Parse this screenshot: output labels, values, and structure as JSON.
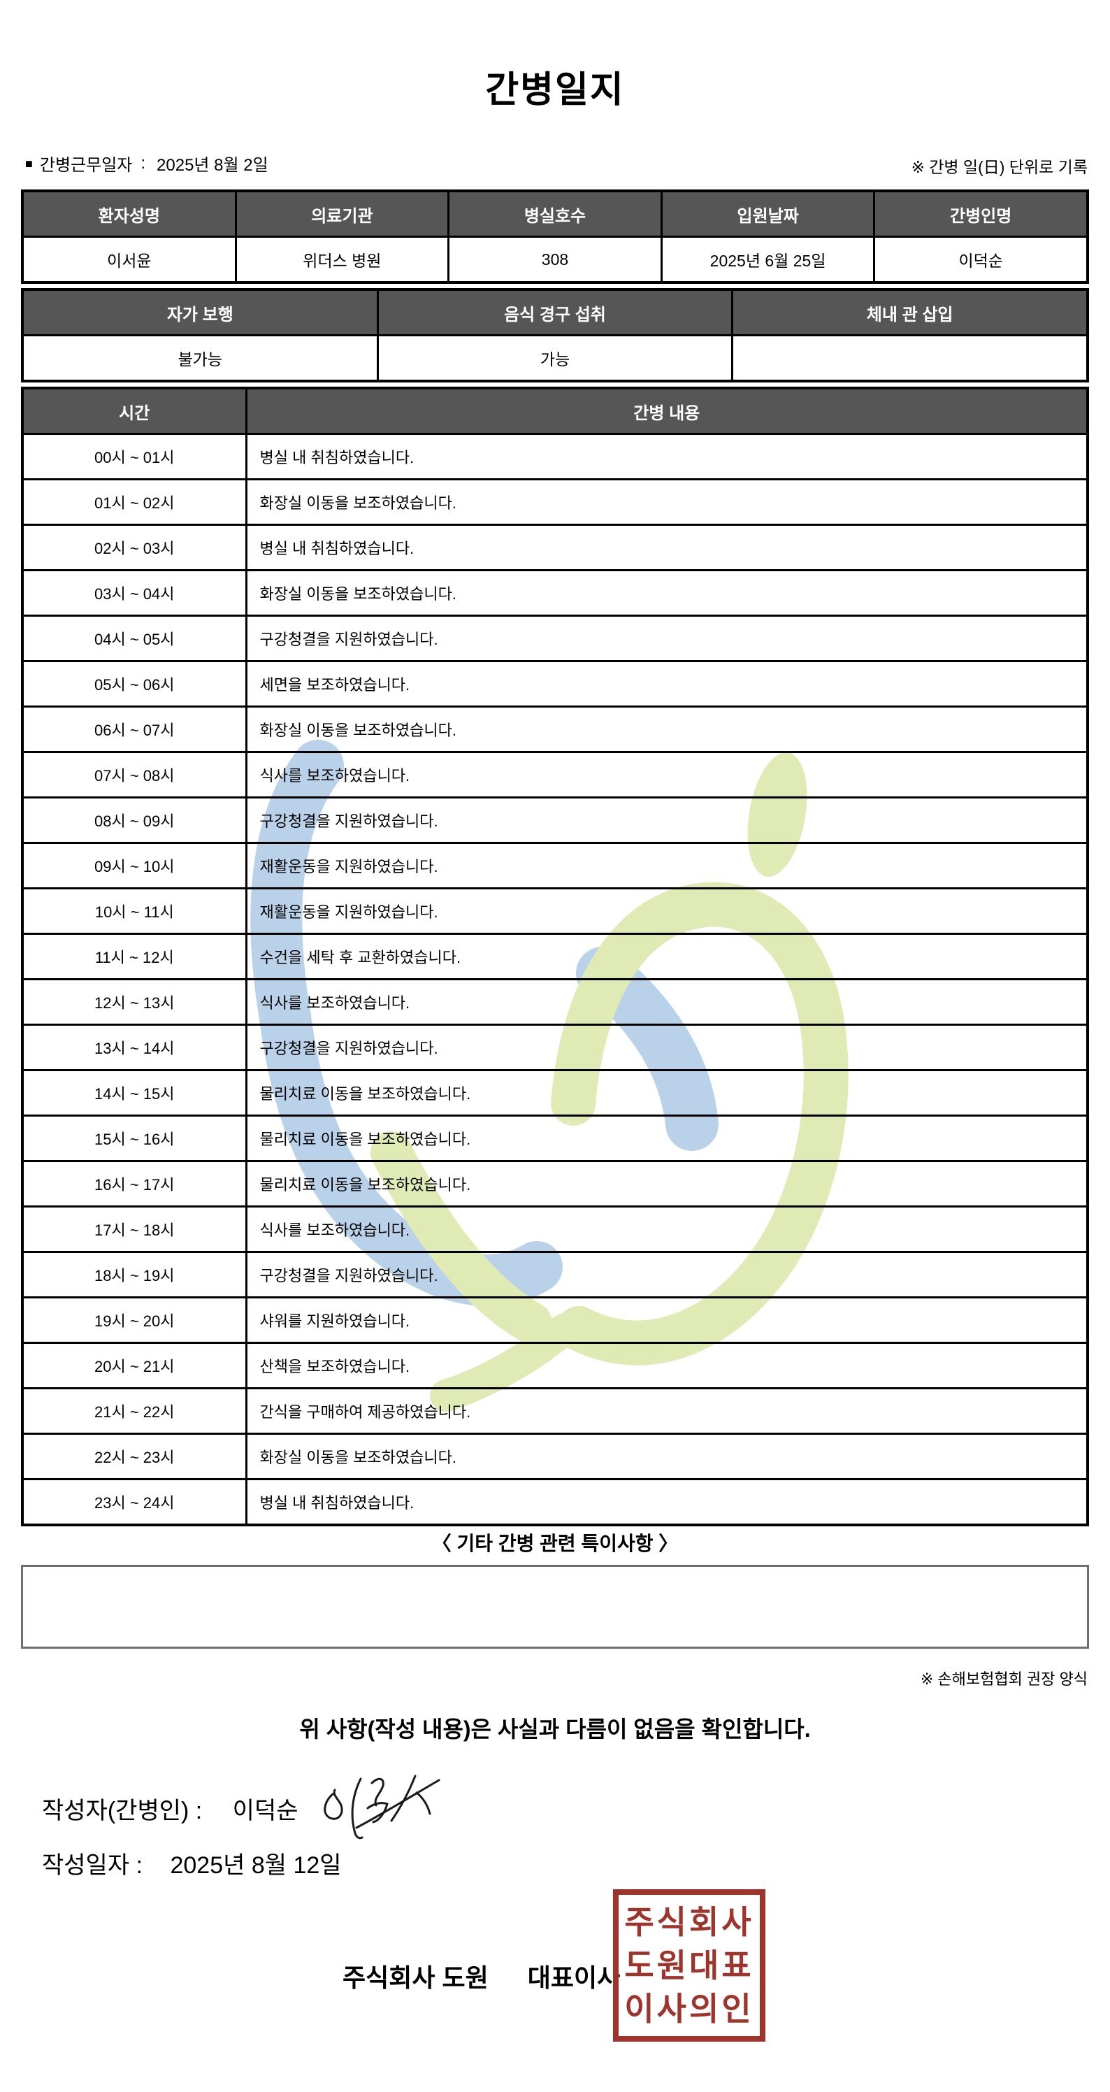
{
  "title": "간병일지",
  "meta": {
    "bullet": "■",
    "work_label": "간병근무일자",
    "colon": ":",
    "work_date": "2025년 8월 2일",
    "unit_note": "※ 간병 일(日) 단위로 기록"
  },
  "patient_table": {
    "headers": [
      "환자성명",
      "의료기관",
      "병실호수",
      "입원날짜",
      "간병인명"
    ],
    "values": [
      "이서윤",
      "위더스 병원",
      "308",
      "2025년 6월 25일",
      "이덕순"
    ]
  },
  "status_table": {
    "headers": [
      "자가 보행",
      "음식 경구 섭취",
      "체내 관 삽입"
    ],
    "values": [
      "불가능",
      "가능",
      ""
    ]
  },
  "care_table": {
    "time_header": "시간",
    "content_header": "간병 내용",
    "rows": [
      {
        "time": "00시 ~ 01시",
        "content": "병실 내 취침하였습니다."
      },
      {
        "time": "01시 ~ 02시",
        "content": "화장실 이동을 보조하였습니다."
      },
      {
        "time": "02시 ~ 03시",
        "content": "병실 내 취침하였습니다."
      },
      {
        "time": "03시 ~ 04시",
        "content": "화장실 이동을 보조하였습니다."
      },
      {
        "time": "04시 ~ 05시",
        "content": "구강청결을 지원하였습니다."
      },
      {
        "time": "05시 ~ 06시",
        "content": "세면을 보조하였습니다."
      },
      {
        "time": "06시 ~ 07시",
        "content": "화장실 이동을 보조하였습니다."
      },
      {
        "time": "07시 ~ 08시",
        "content": "식사를 보조하였습니다."
      },
      {
        "time": "08시 ~ 09시",
        "content": "구강청결을 지원하였습니다."
      },
      {
        "time": "09시 ~ 10시",
        "content": "재활운동을 지원하였습니다."
      },
      {
        "time": "10시 ~ 11시",
        "content": "재활운동을 지원하였습니다."
      },
      {
        "time": "11시 ~ 12시",
        "content": "수건을 세탁 후 교환하였습니다."
      },
      {
        "time": "12시 ~ 13시",
        "content": "식사를 보조하였습니다."
      },
      {
        "time": "13시 ~ 14시",
        "content": "구강청결을 지원하였습니다."
      },
      {
        "time": "14시 ~ 15시",
        "content": "물리치료 이동을 보조하였습니다."
      },
      {
        "time": "15시 ~ 16시",
        "content": "물리치료 이동을 보조하였습니다."
      },
      {
        "time": "16시 ~ 17시",
        "content": "물리치료 이동을 보조하였습니다."
      },
      {
        "time": "17시 ~ 18시",
        "content": "식사를 보조하였습니다."
      },
      {
        "time": "18시 ~ 19시",
        "content": "구강청결을 지원하였습니다."
      },
      {
        "time": "19시 ~ 20시",
        "content": "샤워를 지원하였습니다."
      },
      {
        "time": "20시 ~ 21시",
        "content": "산책을 보조하였습니다."
      },
      {
        "time": "21시 ~ 22시",
        "content": "간식을 구매하여 제공하였습니다."
      },
      {
        "time": "22시 ~ 23시",
        "content": "화장실 이동을 보조하였습니다."
      },
      {
        "time": "23시 ~ 24시",
        "content": "병실 내 취침하였습니다."
      }
    ]
  },
  "notes": {
    "heading": "〈 기타 간병 관련 특이사항 〉",
    "content": "",
    "format_note": "※ 손해보험협회 권장 양식"
  },
  "confirmation": {
    "statement": "위 사항(작성 내용)은 사실과 다름이 없음을 확인합니다.",
    "writer_label": "작성자(간병인) :",
    "writer_name": "이덕순",
    "date_label": "작성일자 :",
    "date_value": "2025년 8월 12일",
    "company_name": "주식회사 도원",
    "company_role": "대표이사",
    "stamp_line1": "주식회사",
    "stamp_line2": "도원대표",
    "stamp_line3": "이사의인"
  },
  "colors": {
    "header_bg": "#565656",
    "stamp_red": "#9e342b",
    "watermark_blue": "#b9d2ea",
    "watermark_green": "#e0eab4"
  }
}
